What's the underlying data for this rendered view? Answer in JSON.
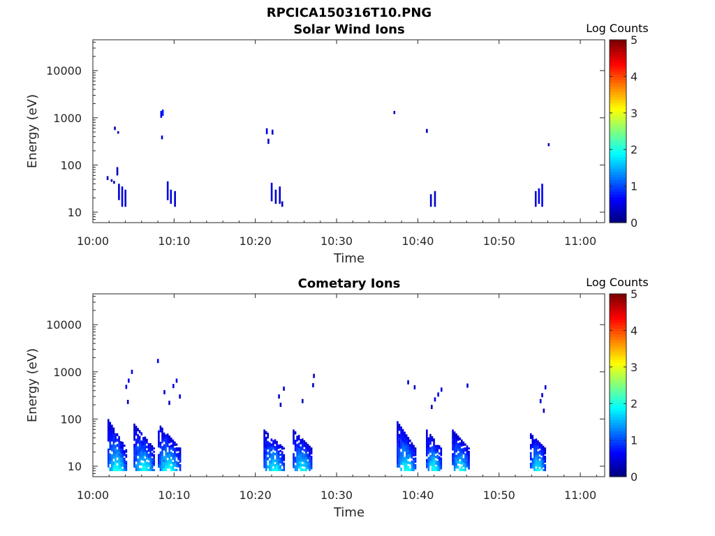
{
  "figure_title": "RPCICA150316T10.PNG",
  "chart_data": [
    {
      "type": "heatmap",
      "title": "Solar Wind Ions",
      "xlabel": "Time",
      "ylabel": "Energy (eV)",
      "xticks": [
        "10:00",
        "10:10",
        "10:20",
        "10:30",
        "10:40",
        "10:50",
        "11:00"
      ],
      "xlim_minutes": [
        0,
        63
      ],
      "yscale": "log",
      "yticks": [
        10,
        100,
        1000,
        10000
      ],
      "ylim": [
        6,
        45000
      ],
      "colorbar_label": "Log Counts",
      "colorbar_ticks": [
        0,
        1,
        2,
        3,
        4,
        5
      ],
      "clim": [
        0,
        5
      ],
      "colormap": "jet",
      "cells": [
        {
          "t": 1.7,
          "e_min": 48,
          "e_max": 58,
          "v": 0.3
        },
        {
          "t": 2.2,
          "e_min": 44,
          "e_max": 50,
          "v": 0.3
        },
        {
          "t": 2.5,
          "e_min": 40,
          "e_max": 46,
          "v": 0.3
        },
        {
          "t": 2.6,
          "e_min": 550,
          "e_max": 650,
          "v": 0.3
        },
        {
          "t": 3.0,
          "e_min": 460,
          "e_max": 520,
          "v": 0.3
        },
        {
          "t": 2.9,
          "e_min": 60,
          "e_max": 90,
          "v": 0.3
        },
        {
          "t": 3.1,
          "e_min": 18,
          "e_max": 40,
          "v": 0.4
        },
        {
          "t": 3.5,
          "e_min": 13,
          "e_max": 35,
          "v": 0.5
        },
        {
          "t": 3.9,
          "e_min": 13,
          "e_max": 30,
          "v": 0.4
        },
        {
          "t": 8.3,
          "e_min": 1000,
          "e_max": 1400,
          "v": 0.6
        },
        {
          "t": 8.5,
          "e_min": 1100,
          "e_max": 1500,
          "v": 0.8
        },
        {
          "t": 8.4,
          "e_min": 350,
          "e_max": 420,
          "v": 0.4
        },
        {
          "t": 9.1,
          "e_min": 18,
          "e_max": 45,
          "v": 0.5
        },
        {
          "t": 9.5,
          "e_min": 15,
          "e_max": 30,
          "v": 0.5
        },
        {
          "t": 10.0,
          "e_min": 13,
          "e_max": 28,
          "v": 0.4
        },
        {
          "t": 21.3,
          "e_min": 450,
          "e_max": 600,
          "v": 0.5
        },
        {
          "t": 21.5,
          "e_min": 280,
          "e_max": 360,
          "v": 0.4
        },
        {
          "t": 22.0,
          "e_min": 440,
          "e_max": 560,
          "v": 0.4
        },
        {
          "t": 21.9,
          "e_min": 17,
          "e_max": 42,
          "v": 0.5
        },
        {
          "t": 22.4,
          "e_min": 15,
          "e_max": 30,
          "v": 0.4
        },
        {
          "t": 22.9,
          "e_min": 15,
          "e_max": 35,
          "v": 0.4
        },
        {
          "t": 23.2,
          "e_min": 13,
          "e_max": 17,
          "v": 0.3
        },
        {
          "t": 37.0,
          "e_min": 1200,
          "e_max": 1400,
          "v": 0.3
        },
        {
          "t": 41.0,
          "e_min": 480,
          "e_max": 580,
          "v": 0.3
        },
        {
          "t": 41.5,
          "e_min": 13,
          "e_max": 24,
          "v": 0.4
        },
        {
          "t": 42.0,
          "e_min": 13,
          "e_max": 28,
          "v": 0.4
        },
        {
          "t": 54.4,
          "e_min": 13,
          "e_max": 28,
          "v": 0.4
        },
        {
          "t": 54.8,
          "e_min": 15,
          "e_max": 32,
          "v": 0.5
        },
        {
          "t": 55.2,
          "e_min": 13,
          "e_max": 40,
          "v": 0.6
        },
        {
          "t": 56.0,
          "e_min": 250,
          "e_max": 290,
          "v": 0.3
        }
      ]
    },
    {
      "type": "heatmap",
      "title": "Cometary Ions",
      "xlabel": "Time",
      "ylabel": "Energy (eV)",
      "xticks": [
        "10:00",
        "10:10",
        "10:20",
        "10:30",
        "10:40",
        "10:50",
        "11:00"
      ],
      "xlim_minutes": [
        0,
        63
      ],
      "yscale": "log",
      "yticks": [
        10,
        100,
        1000,
        10000
      ],
      "ylim": [
        6,
        45000
      ],
      "colorbar_label": "Log Counts",
      "colorbar_ticks": [
        0,
        1,
        2,
        3,
        4,
        5
      ],
      "clim": [
        0,
        5
      ],
      "colormap": "jet",
      "bursts": [
        {
          "t_start": 1.8,
          "t_end": 4.2,
          "e_lo": 8,
          "e_hi": 100
        },
        {
          "t_start": 5.0,
          "t_end": 7.6,
          "e_lo": 8,
          "e_hi": 80
        },
        {
          "t_start": 8.0,
          "t_end": 10.8,
          "e_lo": 8,
          "e_hi": 80
        },
        {
          "t_start": 21.0,
          "t_end": 23.6,
          "e_lo": 8,
          "e_hi": 60
        },
        {
          "t_start": 24.6,
          "t_end": 27.0,
          "e_lo": 8,
          "e_hi": 60
        },
        {
          "t_start": 37.4,
          "t_end": 39.8,
          "e_lo": 8,
          "e_hi": 90
        },
        {
          "t_start": 41.0,
          "t_end": 43.0,
          "e_lo": 8,
          "e_hi": 60
        },
        {
          "t_start": 44.2,
          "t_end": 46.4,
          "e_lo": 8,
          "e_hi": 60
        },
        {
          "t_start": 53.8,
          "t_end": 55.8,
          "e_lo": 8,
          "e_hi": 50
        }
      ],
      "sparse_cells": [
        {
          "t": 4.3,
          "e": 650,
          "v": 0.5
        },
        {
          "t": 4.7,
          "e": 1000,
          "v": 0.4
        },
        {
          "t": 4.0,
          "e": 480,
          "v": 0.5
        },
        {
          "t": 4.2,
          "e": 230,
          "v": 0.3
        },
        {
          "t": 7.9,
          "e": 1700,
          "v": 0.6
        },
        {
          "t": 8.7,
          "e": 370,
          "v": 0.4
        },
        {
          "t": 9.8,
          "e": 500,
          "v": 0.5
        },
        {
          "t": 10.2,
          "e": 650,
          "v": 0.5
        },
        {
          "t": 10.6,
          "e": 300,
          "v": 0.4
        },
        {
          "t": 9.3,
          "e": 220,
          "v": 0.3
        },
        {
          "t": 22.8,
          "e": 300,
          "v": 0.4
        },
        {
          "t": 23.4,
          "e": 440,
          "v": 0.4
        },
        {
          "t": 23.0,
          "e": 200,
          "v": 0.3
        },
        {
          "t": 25.7,
          "e": 240,
          "v": 0.3
        },
        {
          "t": 27.1,
          "e": 820,
          "v": 0.3
        },
        {
          "t": 27.0,
          "e": 520,
          "v": 0.3
        },
        {
          "t": 38.7,
          "e": 600,
          "v": 0.4
        },
        {
          "t": 39.5,
          "e": 470,
          "v": 0.3
        },
        {
          "t": 42.0,
          "e": 260,
          "v": 0.5
        },
        {
          "t": 42.4,
          "e": 330,
          "v": 0.5
        },
        {
          "t": 42.8,
          "e": 420,
          "v": 0.4
        },
        {
          "t": 41.6,
          "e": 180,
          "v": 0.3
        },
        {
          "t": 46.0,
          "e": 510,
          "v": 0.3
        },
        {
          "t": 55.2,
          "e": 320,
          "v": 0.4
        },
        {
          "t": 55.6,
          "e": 470,
          "v": 0.4
        },
        {
          "t": 55.0,
          "e": 240,
          "v": 0.3
        },
        {
          "t": 55.4,
          "e": 150,
          "v": 0.3
        }
      ]
    }
  ]
}
